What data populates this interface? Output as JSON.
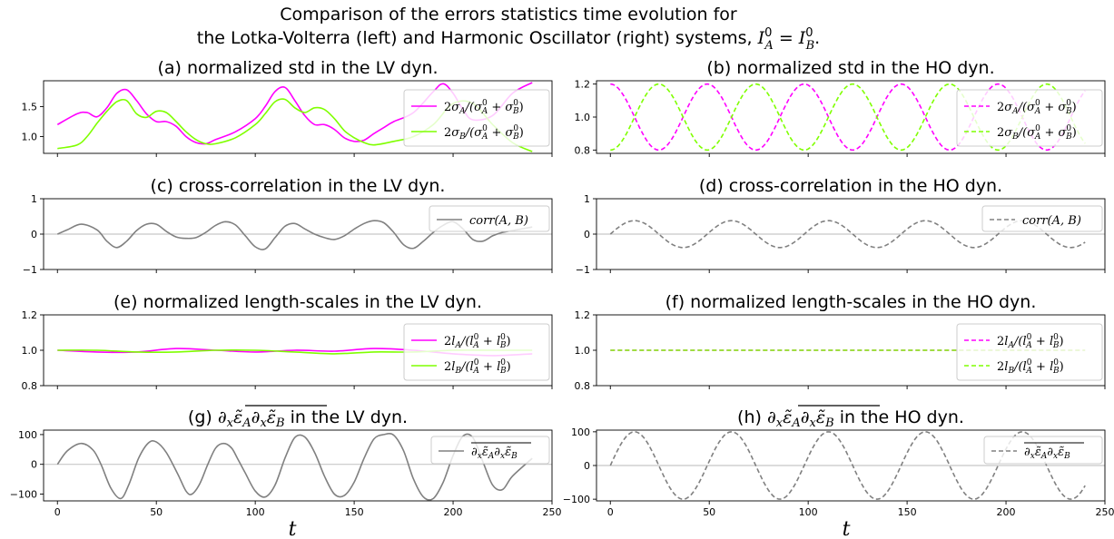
{
  "figure": {
    "title_line1": "Comparison of the errors statistics time evolution for",
    "title_line2": "the Lotka-Volterra (left) and Harmonic Oscillator (right) systems, I_A^0 = I_B^0.",
    "xlabel": "t"
  },
  "colors": {
    "magenta": "#ff00ff",
    "green": "#7fff00",
    "grey": "#808080",
    "zero_line": "#c8c8c8"
  },
  "chart_data": [
    {
      "id": "a",
      "type": "line",
      "title": "(a) normalized std in the LV dyn.",
      "xlim": [
        -7,
        250
      ],
      "ylim": [
        0.72,
        1.93
      ],
      "yticks": [
        1.0,
        1.5
      ],
      "ytick_labels": [
        "1.0",
        "1.5"
      ],
      "xticks": [
        0,
        50,
        100,
        150,
        200,
        250
      ],
      "show_xtick_labels": false,
      "legend_position": "right",
      "zero_line": false,
      "series": [
        {
          "name": "2σ_A/(σ_A^0 + σ_B^0)",
          "color": "#ff00ff",
          "dashed": false,
          "x": [
            0,
            10,
            15,
            20,
            25,
            30,
            35,
            40,
            45,
            50,
            55,
            60,
            65,
            70,
            75,
            80,
            90,
            100,
            105,
            110,
            115,
            120,
            125,
            130,
            135,
            140,
            145,
            150,
            155,
            160,
            165,
            170,
            180,
            190,
            195,
            200,
            205,
            210,
            220,
            230,
            240
          ],
          "y": [
            1.2,
            1.38,
            1.4,
            1.33,
            1.48,
            1.72,
            1.78,
            1.6,
            1.38,
            1.25,
            1.25,
            1.17,
            1.0,
            0.9,
            0.88,
            0.95,
            1.08,
            1.3,
            1.5,
            1.75,
            1.82,
            1.6,
            1.35,
            1.2,
            1.2,
            1.12,
            0.98,
            0.92,
            0.94,
            1.05,
            1.15,
            1.25,
            1.4,
            1.75,
            1.88,
            1.72,
            1.45,
            1.28,
            1.35,
            1.72,
            1.9
          ]
        },
        {
          "name": "2σ_B/(σ_A^0 + σ_B^0)",
          "color": "#7fff00",
          "dashed": false,
          "x": [
            0,
            10,
            15,
            20,
            25,
            30,
            35,
            40,
            45,
            50,
            55,
            60,
            65,
            70,
            75,
            80,
            90,
            100,
            105,
            110,
            115,
            120,
            125,
            130,
            135,
            140,
            145,
            150,
            155,
            160,
            170,
            180,
            190,
            200,
            210,
            220,
            230,
            240
          ],
          "y": [
            0.8,
            0.86,
            1.0,
            1.22,
            1.42,
            1.58,
            1.6,
            1.38,
            1.32,
            1.42,
            1.4,
            1.25,
            1.08,
            0.95,
            0.88,
            0.88,
            0.98,
            1.2,
            1.38,
            1.58,
            1.62,
            1.48,
            1.4,
            1.48,
            1.45,
            1.3,
            1.1,
            0.98,
            0.9,
            0.86,
            0.92,
            1.0,
            1.2,
            1.55,
            1.55,
            1.2,
            0.9,
            0.75
          ]
        }
      ]
    },
    {
      "id": "b",
      "type": "line",
      "title": "(b) normalized std in the HO dyn.",
      "xlim": [
        -7,
        250
      ],
      "ylim": [
        0.78,
        1.22
      ],
      "yticks": [
        0.8,
        1.0,
        1.2
      ],
      "ytick_labels": [
        "0.8",
        "1.0",
        "1.2"
      ],
      "xticks": [
        0,
        50,
        100,
        150,
        200,
        250
      ],
      "show_xtick_labels": false,
      "legend_position": "right",
      "zero_line": false,
      "series": [
        {
          "name": "2σ_A/(σ_A^0 + σ_B^0)",
          "color": "#ff00ff",
          "dashed": true,
          "func": {
            "kind": "cos",
            "offset": 1.0,
            "amp": 0.2,
            "period": 49,
            "x0": 0,
            "x1": 240
          }
        },
        {
          "name": "2σ_B/(σ_A^0 + σ_B^0)",
          "color": "#7fff00",
          "dashed": true,
          "func": {
            "kind": "cos",
            "offset": 1.0,
            "amp": -0.2,
            "period": 49,
            "x0": 0,
            "x1": 240
          }
        }
      ]
    },
    {
      "id": "c",
      "type": "line",
      "title": "(c) cross-correlation in the LV dyn.",
      "xlim": [
        -7,
        250
      ],
      "ylim": [
        -1,
        1
      ],
      "yticks": [
        -1,
        0,
        1
      ],
      "ytick_labels": [
        "−1",
        "0",
        "1"
      ],
      "xticks": [
        0,
        50,
        100,
        150,
        200,
        250
      ],
      "show_xtick_labels": false,
      "legend_position": "top-right",
      "zero_line": true,
      "series": [
        {
          "name": "corr(A, B)",
          "color": "#808080",
          "dashed": false,
          "x": [
            0,
            5,
            12,
            20,
            25,
            30,
            35,
            40,
            45,
            50,
            55,
            60,
            65,
            70,
            75,
            80,
            85,
            90,
            95,
            100,
            105,
            110,
            115,
            120,
            125,
            130,
            135,
            140,
            145,
            150,
            155,
            160,
            165,
            170,
            175,
            180,
            185,
            190,
            195,
            200,
            205,
            210,
            215,
            220,
            225,
            230,
            240
          ],
          "y": [
            0,
            0.12,
            0.28,
            0.12,
            -0.2,
            -0.38,
            -0.2,
            0.1,
            0.28,
            0.28,
            0.08,
            -0.08,
            -0.12,
            -0.1,
            0.05,
            0.25,
            0.35,
            0.26,
            -0.05,
            -0.36,
            -0.42,
            -0.1,
            0.22,
            0.3,
            0.15,
            0.0,
            -0.1,
            -0.15,
            -0.05,
            0.14,
            0.3,
            0.38,
            0.32,
            0.05,
            -0.3,
            -0.4,
            -0.2,
            0.05,
            0.25,
            0.35,
            0.15,
            -0.15,
            -0.2,
            -0.05,
            0.05,
            0.1,
            0.2
          ]
        }
      ]
    },
    {
      "id": "d",
      "type": "line",
      "title": "(d) cross-correlation in the HO dyn.",
      "xlim": [
        -7,
        250
      ],
      "ylim": [
        -1,
        1
      ],
      "yticks": [
        -1,
        0,
        1
      ],
      "ytick_labels": [
        "−1",
        "0",
        "1"
      ],
      "xticks": [
        0,
        50,
        100,
        150,
        200,
        250
      ],
      "show_xtick_labels": false,
      "legend_position": "top-right",
      "zero_line": true,
      "series": [
        {
          "name": "corr(A, B)",
          "color": "#808080",
          "dashed": true,
          "func": {
            "kind": "sin",
            "offset": 0.0,
            "amp": 0.38,
            "period": 49,
            "x0": 0,
            "x1": 240
          }
        }
      ]
    },
    {
      "id": "e",
      "type": "line",
      "title": "(e) normalized length-scales in the LV dyn.",
      "xlim": [
        -7,
        250
      ],
      "ylim": [
        0.8,
        1.2
      ],
      "yticks": [
        0.8,
        1.0,
        1.2
      ],
      "ytick_labels": [
        "0.8",
        "1.0",
        "1.2"
      ],
      "xticks": [
        0,
        50,
        100,
        150,
        200,
        250
      ],
      "show_xtick_labels": false,
      "legend_position": "right",
      "zero_line": false,
      "series": [
        {
          "name": "2l_A/(l_A^0 + l_B^0)",
          "color": "#ff00ff",
          "dashed": false,
          "x": [
            0,
            20,
            40,
            60,
            80,
            100,
            120,
            140,
            160,
            180,
            200,
            220,
            240
          ],
          "y": [
            1.0,
            0.99,
            0.99,
            1.01,
            1.0,
            0.99,
            1.0,
            0.995,
            1.01,
            1.0,
            0.98,
            0.97,
            0.98
          ]
        },
        {
          "name": "2l_B/(l_A^0 + l_B^0)",
          "color": "#7fff00",
          "dashed": false,
          "x": [
            0,
            20,
            40,
            60,
            80,
            100,
            120,
            140,
            160,
            180,
            200,
            220,
            240
          ],
          "y": [
            1.0,
            1.0,
            0.99,
            0.99,
            1.0,
            1.0,
            0.99,
            0.98,
            0.99,
            0.99,
            1.0,
            1.0,
            1.0
          ]
        }
      ]
    },
    {
      "id": "f",
      "type": "line",
      "title": "(f) normalized length-scales in the HO dyn.",
      "xlim": [
        -7,
        250
      ],
      "ylim": [
        0.8,
        1.2
      ],
      "yticks": [
        0.8,
        1.0,
        1.2
      ],
      "ytick_labels": [
        "0.8",
        "1.0",
        "1.2"
      ],
      "xticks": [
        0,
        50,
        100,
        150,
        200,
        250
      ],
      "show_xtick_labels": false,
      "legend_position": "right",
      "zero_line": false,
      "series": [
        {
          "name": "2l_A/(l_A^0 + l_B^0)",
          "color": "#ff00ff",
          "dashed": true,
          "x": [
            0,
            240
          ],
          "y": [
            1.0,
            1.0
          ]
        },
        {
          "name": "2l_B/(l_A^0 + l_B^0)",
          "color": "#7fff00",
          "dashed": true,
          "x": [
            0,
            240
          ],
          "y": [
            1.0,
            1.0
          ]
        }
      ]
    },
    {
      "id": "g",
      "type": "line",
      "title": "(g) ∂xε̃A∂xε̃B in the LV dyn.",
      "xlim": [
        -7,
        250
      ],
      "ylim": [
        -123,
        115
      ],
      "yticks": [
        -100,
        0,
        100
      ],
      "ytick_labels": [
        "−100",
        "0",
        "100"
      ],
      "xticks": [
        0,
        50,
        100,
        150,
        200,
        250
      ],
      "show_xtick_labels": true,
      "legend_position": "top-right",
      "zero_line": true,
      "series": [
        {
          "name": "∂xε̃A∂xε̃B",
          "color": "#808080",
          "dashed": false,
          "x": [
            0,
            5,
            12,
            18,
            22,
            27,
            32,
            36,
            41,
            46,
            50,
            55,
            61,
            65,
            68,
            72,
            76,
            80,
            84,
            88,
            91,
            95,
            100,
            105,
            110,
            115,
            120,
            125,
            130,
            135,
            140,
            145,
            150,
            155,
            160,
            165,
            170,
            175,
            180,
            185,
            190,
            195,
            200,
            205,
            210,
            215,
            220,
            225,
            230,
            240
          ],
          "y": [
            0,
            45,
            70,
            48,
            0,
            -80,
            -115,
            -70,
            20,
            72,
            75,
            40,
            -35,
            -90,
            -100,
            -65,
            0,
            55,
            70,
            55,
            20,
            -30,
            -90,
            -110,
            -70,
            20,
            90,
            92,
            40,
            -40,
            -100,
            -105,
            -60,
            20,
            85,
            100,
            98,
            45,
            -50,
            -110,
            -115,
            -60,
            30,
            95,
            90,
            10,
            -70,
            -85,
            -40,
            20
          ]
        }
      ]
    },
    {
      "id": "h",
      "type": "line",
      "title": "(h) ∂xε̃A∂xε̃B in the HO dyn.",
      "xlim": [
        -7,
        250
      ],
      "ylim": [
        -105,
        105
      ],
      "yticks": [
        -100,
        0,
        100
      ],
      "ytick_labels": [
        "−100",
        "0",
        "100"
      ],
      "xticks": [
        0,
        50,
        100,
        150,
        200,
        250
      ],
      "show_xtick_labels": true,
      "legend_position": "top-right",
      "zero_line": true,
      "series": [
        {
          "name": "∂xε̃A∂xε̃B",
          "color": "#808080",
          "dashed": true,
          "func": {
            "kind": "sin",
            "offset": 0.0,
            "amp": 100,
            "period": 49,
            "x0": 0,
            "x1": 240
          }
        }
      ]
    }
  ]
}
